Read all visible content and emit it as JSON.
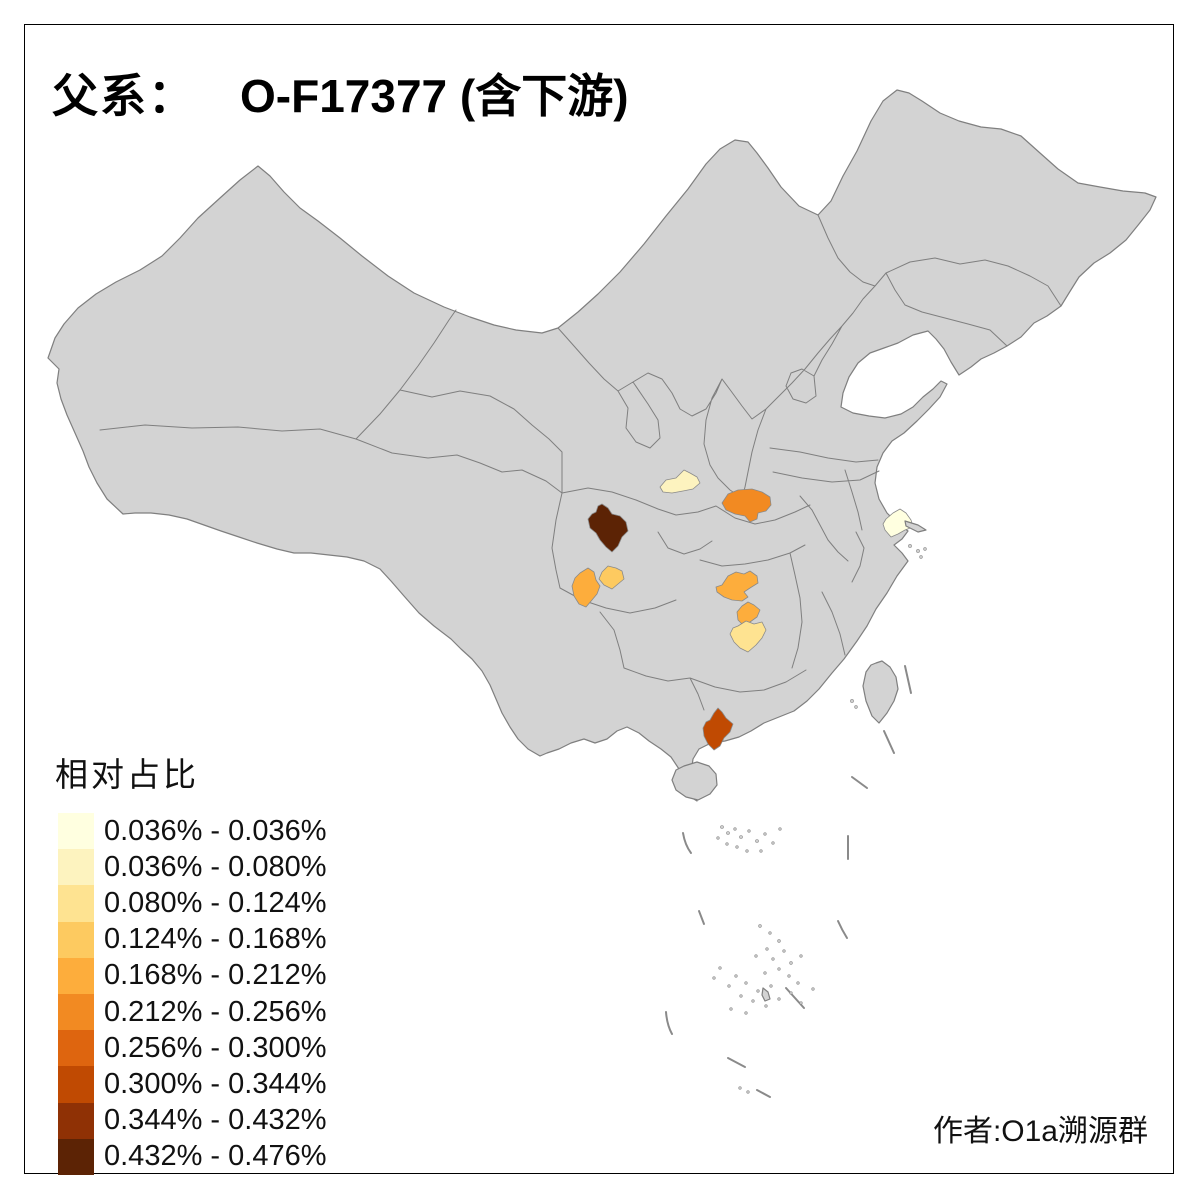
{
  "title": {
    "prefix": "父系：",
    "main": "O-F17377 (含下游)"
  },
  "legend": {
    "title": "相对占比",
    "classes": [
      {
        "label": "0.036% - 0.036%",
        "color": "#FFFFE0"
      },
      {
        "label": "0.036% - 0.080%",
        "color": "#FDF3BF"
      },
      {
        "label": "0.080% - 0.124%",
        "color": "#FEE391"
      },
      {
        "label": "0.124% - 0.168%",
        "color": "#FDCA60"
      },
      {
        "label": "0.168% - 0.212%",
        "color": "#FDAD3C"
      },
      {
        "label": "0.212% - 0.256%",
        "color": "#F28A22"
      },
      {
        "label": "0.256% - 0.300%",
        "color": "#DE650F"
      },
      {
        "label": "0.300% - 0.344%",
        "color": "#C04A02"
      },
      {
        "label": "0.344% - 0.432%",
        "color": "#8F3105"
      },
      {
        "label": "0.432% - 0.476%",
        "color": "#5C2305"
      }
    ]
  },
  "attribution": "作者:O1a溯源群",
  "map": {
    "land_fill": "#d3d3d3",
    "border_color": "#7f7f7f",
    "regions": [
      {
        "id": "region-jiangsu-south",
        "value_range": "0.036% - 0.036%",
        "color": "#FFFFE0"
      },
      {
        "id": "region-gansu-southeast",
        "value_range": "0.036% - 0.080%",
        "color": "#FDF3BF"
      },
      {
        "id": "region-hunan-south",
        "value_range": "0.080% - 0.124%",
        "color": "#FEE391"
      },
      {
        "id": "region-sichuan-east-small",
        "value_range": "0.124% - 0.168%",
        "color": "#FDCA60"
      },
      {
        "id": "region-sichuan-southwest",
        "value_range": "0.168% - 0.212%",
        "color": "#FDAD3C"
      },
      {
        "id": "region-hunan-north",
        "value_range": "0.168% - 0.212%",
        "color": "#FDAD3C"
      },
      {
        "id": "region-hunan-middle",
        "value_range": "0.168% - 0.212%",
        "color": "#FDAD3C"
      },
      {
        "id": "region-henan-southwest",
        "value_range": "0.212% - 0.256%",
        "color": "#F28A22"
      },
      {
        "id": "region-guangxi-south",
        "value_range": "0.300% - 0.344%",
        "color": "#C04A02"
      },
      {
        "id": "region-sichuan-west",
        "value_range": "0.432% - 0.476%",
        "color": "#5C2305"
      }
    ]
  },
  "chart_data": {
    "type": "choropleth-map",
    "title": "父系： O-F17377 (含下游)",
    "legend_title": "相对占比",
    "class_breaks": [
      "0.036%",
      "0.080%",
      "0.124%",
      "0.168%",
      "0.212%",
      "0.256%",
      "0.300%",
      "0.344%",
      "0.432%",
      "0.476%"
    ],
    "highlighted_region_count": 10
  }
}
